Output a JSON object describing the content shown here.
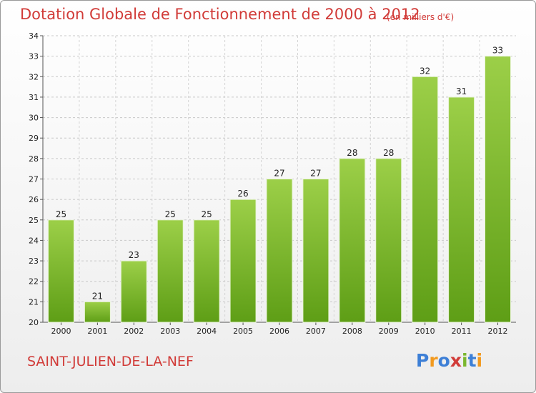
{
  "header": {
    "title": "Dotation Globale de Fonctionnement de 2000 à 2012",
    "subtitle": "(en milliers d'€)"
  },
  "footer": {
    "commune": "SAINT-JULIEN-DE-LA-NEF",
    "logo_text": "Proxiti"
  },
  "colors": {
    "title": "#d13b38",
    "bar_top": "#9ccf48",
    "bar_bottom": "#5e9e16"
  },
  "chart_data": {
    "type": "bar",
    "title": "Dotation Globale de Fonctionnement de 2000 à 2012",
    "subtitle": "(en milliers d'€)",
    "categories": [
      "2000",
      "2001",
      "2002",
      "2003",
      "2004",
      "2005",
      "2006",
      "2007",
      "2008",
      "2009",
      "2010",
      "2011",
      "2012"
    ],
    "values": [
      25,
      21,
      23,
      25,
      25,
      26,
      27,
      27,
      28,
      28,
      32,
      31,
      33
    ],
    "ylim": [
      20,
      34
    ],
    "yticks": [
      20,
      21,
      22,
      23,
      24,
      25,
      26,
      27,
      28,
      29,
      30,
      31,
      32,
      33,
      34
    ],
    "grid": true,
    "data_labels": true
  }
}
